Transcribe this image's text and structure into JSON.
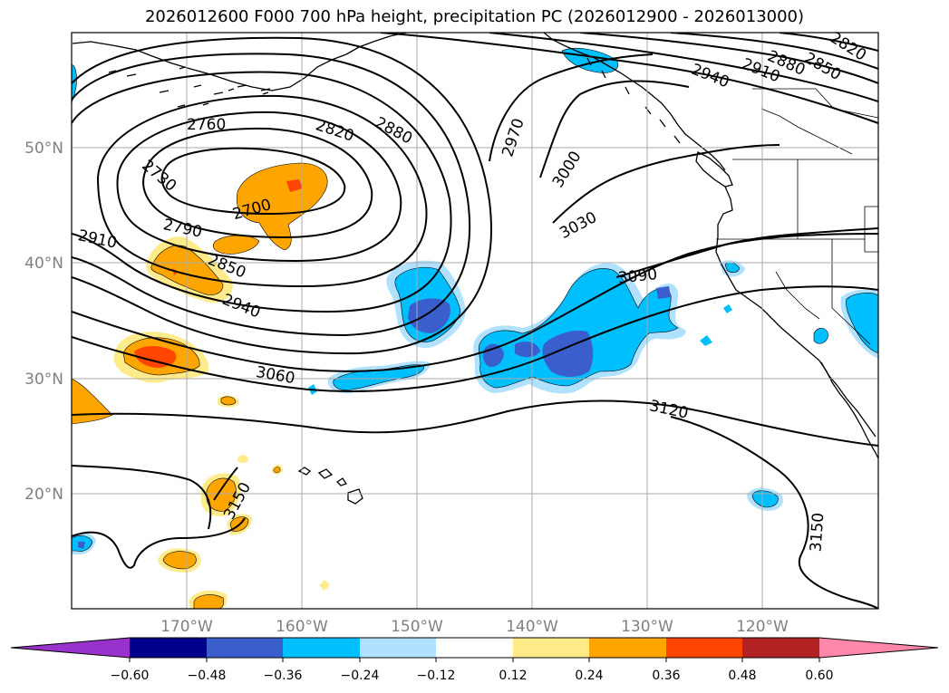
{
  "title": "2026012600 F000 700 hPa height, precipitation PC (2026012900 - 2026013000)",
  "lat_labels": [
    "50°N",
    "40°N",
    "30°N",
    "20°N"
  ],
  "lon_labels": [
    "170°W",
    "160°W",
    "150°W",
    "140°W",
    "130°W",
    "120°W"
  ],
  "contour_labels": [
    "2760",
    "2820",
    "2880",
    "2730",
    "2700",
    "2790",
    "2910",
    "2850",
    "2940",
    "3060",
    "2970",
    "3000",
    "3030",
    "3090",
    "3120",
    "3150",
    "3150",
    "2940",
    "2910",
    "2880",
    "2850",
    "2820"
  ],
  "colorbar": {
    "ticks": [
      "−0.60",
      "−0.48",
      "−0.36",
      "−0.24",
      "−0.12",
      "0.12",
      "0.24",
      "0.36",
      "0.48",
      "0.60"
    ],
    "colors": [
      "#9932cc",
      "#00008b",
      "#3a5fcd",
      "#00bfff",
      "#b0e2ff",
      "#ffffff",
      "#ffeb8a",
      "#ffa500",
      "#ff4500",
      "#b22222",
      "#ff88aa"
    ]
  },
  "map": {
    "lat_range": [
      10,
      60
    ],
    "lon_range": [
      -180,
      -110
    ],
    "contour_interval_m": 30,
    "fill_colors": {
      "neg_light": "#b0e2ff",
      "neg_mid": "#00bfff",
      "neg_strong": "#3a5fcd",
      "pos_light": "#ffeb8a",
      "pos_mid": "#ffa500",
      "pos_strong": "#ff4500"
    }
  }
}
